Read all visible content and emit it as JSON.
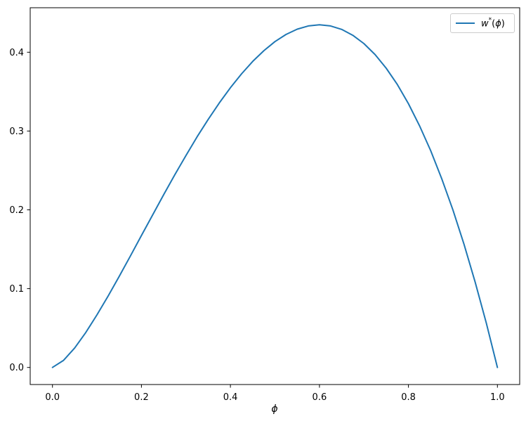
{
  "figure": {
    "background": "#ffffff"
  },
  "legend": {
    "label_base": "w",
    "label_sup": "*",
    "label_lparen": "(",
    "label_phi": "ϕ",
    "label_rparen": ")",
    "line_color": "#1f77b4",
    "border_color": "#cccccc"
  },
  "chart_data": {
    "type": "line",
    "title": "",
    "xlabel": "ϕ",
    "ylabel": "",
    "xlim": [
      -0.05,
      1.05
    ],
    "ylim": [
      -0.0217,
      0.4565
    ],
    "x_ticks": [
      0.0,
      0.2,
      0.4,
      0.6,
      0.8,
      1.0
    ],
    "x_tick_labels": [
      "0.0",
      "0.2",
      "0.4",
      "0.6",
      "0.8",
      "1.0"
    ],
    "y_ticks": [
      0.0,
      0.1,
      0.2,
      0.3,
      0.4
    ],
    "y_tick_labels": [
      "0.0",
      "0.1",
      "0.2",
      "0.3",
      "0.4"
    ],
    "grid": false,
    "legend_position": "upper right",
    "series": [
      {
        "name": "w*(ϕ)",
        "color": "#1f77b4",
        "peak": {
          "x": 0.6,
          "y": 0.435
        },
        "x": [
          0.0,
          0.025,
          0.05,
          0.075,
          0.1,
          0.125,
          0.15,
          0.175,
          0.2,
          0.225,
          0.25,
          0.275,
          0.3,
          0.325,
          0.35,
          0.375,
          0.4,
          0.425,
          0.45,
          0.475,
          0.5,
          0.525,
          0.55,
          0.575,
          0.6,
          0.625,
          0.65,
          0.675,
          0.7,
          0.725,
          0.75,
          0.775,
          0.8,
          0.825,
          0.85,
          0.875,
          0.9,
          0.925,
          0.95,
          0.975,
          1.0
        ],
        "y": [
          0.0,
          0.009,
          0.0248,
          0.0444,
          0.0666,
          0.0905,
          0.1155,
          0.1413,
          0.1674,
          0.1934,
          0.2193,
          0.2445,
          0.269,
          0.2926,
          0.3148,
          0.3357,
          0.355,
          0.3726,
          0.3883,
          0.402,
          0.4135,
          0.4226,
          0.4293,
          0.4334,
          0.4348,
          0.4334,
          0.429,
          0.4215,
          0.411,
          0.3971,
          0.3798,
          0.3591,
          0.3347,
          0.3067,
          0.275,
          0.2393,
          0.1997,
          0.1561,
          0.1083,
          0.0563,
          0.0
        ]
      }
    ]
  }
}
